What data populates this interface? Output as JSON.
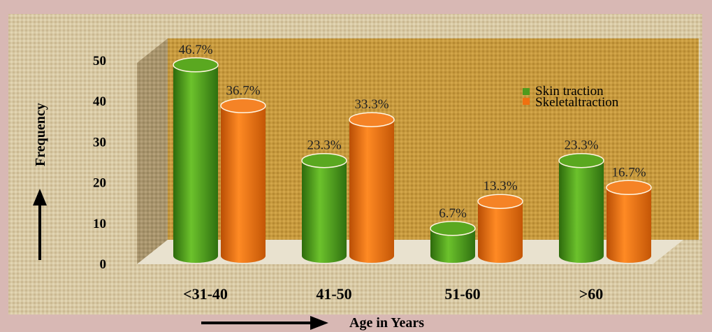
{
  "chart_data": {
    "type": "bar",
    "categories": [
      "<31-40",
      "41-50",
      "51-60",
      ">60"
    ],
    "series": [
      {
        "name": "Skin traction",
        "values": [
          46.7,
          23.3,
          6.7,
          23.3
        ],
        "labels": [
          "46.7%",
          "23.3%",
          "6.7%",
          "23.3%"
        ],
        "color": "#4f9a1c"
      },
      {
        "name": "Skeletaltraction",
        "values": [
          36.7,
          33.3,
          13.3,
          16.7
        ],
        "labels": [
          "36.7%",
          "33.3%",
          "13.3%",
          "16.7%"
        ],
        "color": "#f07010"
      }
    ],
    "yticks": [
      "0",
      "10",
      "20",
      "30",
      "40",
      "50"
    ],
    "ylim": [
      0,
      50
    ],
    "ylabel": "Frequency",
    "xlabel": "Age in Years",
    "legend_position": "top-right",
    "grid": false
  }
}
